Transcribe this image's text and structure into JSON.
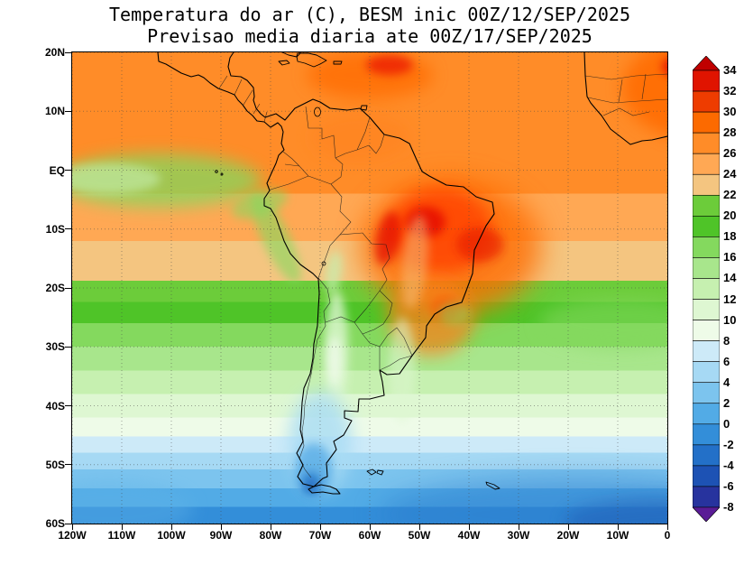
{
  "title": {
    "line1": "Temperatura do ar (C), BESM inic 00Z/12/SEP/2025",
    "line2": "Previsao media diaria ate 00Z/17/SEP/2025"
  },
  "axes": {
    "lat_ticks": [
      "20N",
      "10N",
      "EQ",
      "10S",
      "20S",
      "30S",
      "40S",
      "50S",
      "60S"
    ],
    "lon_ticks": [
      "120W",
      "110W",
      "100W",
      "90W",
      "80W",
      "70W",
      "60W",
      "50W",
      "40W",
      "30W",
      "20W",
      "10W",
      "0"
    ]
  },
  "colorbar": {
    "labels": [
      "34",
      "32",
      "30",
      "28",
      "26",
      "24",
      "22",
      "20",
      "18",
      "16",
      "14",
      "12",
      "10",
      "8",
      "6",
      "4",
      "2",
      "0",
      "-2",
      "-4",
      "-6",
      "-8"
    ],
    "box_colors": [
      "#e01400",
      "#ee3c00",
      "#fc6a00",
      "#ff8c28",
      "#ffa854",
      "#f4c580",
      "#6ccc3a",
      "#4fc428",
      "#84d95e",
      "#a8e68c",
      "#c6f0b0",
      "#def7d2",
      "#eefbe8",
      "#cdeaf8",
      "#a6d9f4",
      "#7cc4ee",
      "#52abe6",
      "#338ed9",
      "#2370c8",
      "#1d52b4",
      "#27339e"
    ],
    "arrow_top_color": "#c00000",
    "arrow_bottom_color": "#5a1c96"
  },
  "chart_data": {
    "type": "heatmap",
    "subtype": "filled contour map",
    "variable": "Temperatura do ar (C)",
    "model": "BESM",
    "init_time": "00Z/12/SEP/2025",
    "valid_through": "00Z/17/SEP/2025",
    "region": {
      "lon_range": [
        "120W",
        "0"
      ],
      "lat_range": [
        "60S",
        "20N"
      ]
    },
    "contour_interval_c": 2,
    "levels_c": [
      -8,
      -6,
      -4,
      -2,
      0,
      2,
      4,
      6,
      8,
      10,
      12,
      14,
      16,
      18,
      20,
      22,
      24,
      26,
      28,
      30,
      32,
      34
    ],
    "legend_position": "right",
    "grid": "dotted 10-degree graticule",
    "readings": [
      {
        "area": "Central and northeast Brazil interior",
        "approx_temp_c": "30 to 34"
      },
      {
        "area": "Amazon basin and eastern Andes slopes",
        "approx_temp_c": "28 to 32"
      },
      {
        "area": "Caribbean and tropical North Atlantic",
        "approx_temp_c": "26 to 30"
      },
      {
        "area": "West Africa (upper right corner)",
        "approx_temp_c": "28 to 34"
      },
      {
        "area": "Equatorial east Pacific cold tongue",
        "approx_temp_c": "20 to 24"
      },
      {
        "area": "Subtropical oceans near 25S",
        "approx_temp_c": "18 to 22"
      },
      {
        "area": "Central Argentina",
        "approx_temp_c": "8 to 14"
      },
      {
        "area": "Southern Andes / Patagonia cold core",
        "approx_temp_c": "-2 to 4"
      },
      {
        "area": "Southern Ocean band 50S-60S",
        "approx_temp_c": "-4 to 4"
      }
    ]
  }
}
